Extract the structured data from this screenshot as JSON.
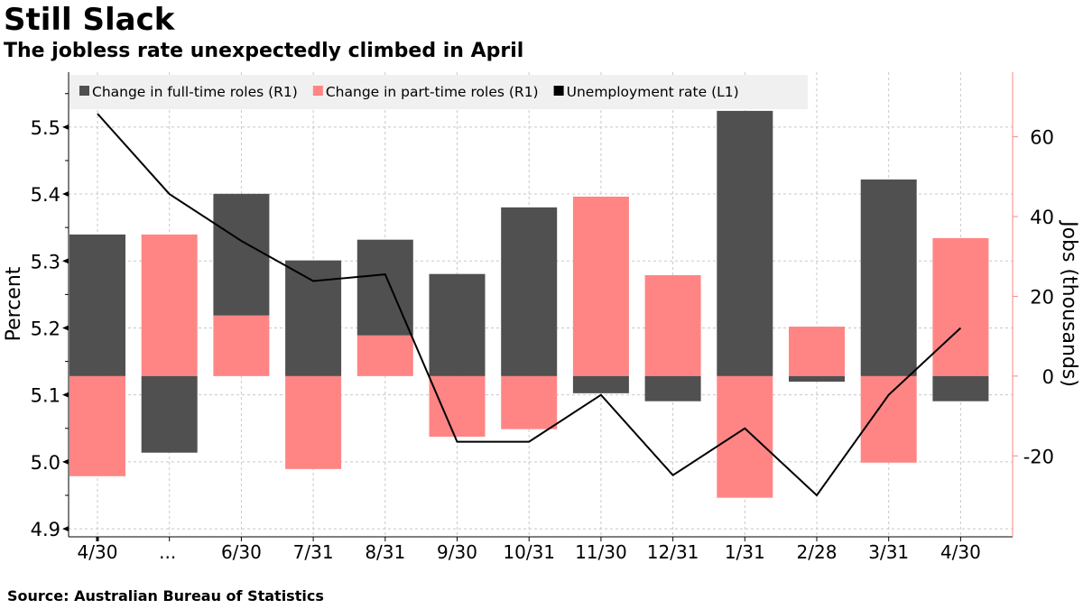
{
  "title": "Still Slack",
  "subtitle": "The jobless rate unexpectedly climbed in April",
  "source": "Source: Australian Bureau of Statistics",
  "colors": {
    "full_time": "#505050",
    "part_time": "#ff8585",
    "unemployment": "#000000",
    "right_axis": "#ff8585"
  },
  "chart_data": {
    "type": "bar+line",
    "categories": [
      "4/30",
      "...",
      "6/30",
      "7/31",
      "8/31",
      "9/30",
      "10/31",
      "11/30",
      "12/31",
      "1/31",
      "2/28",
      "3/31",
      "4/30"
    ],
    "series": [
      {
        "name": "Change in full-time roles (R1)",
        "type": "stacked-bar",
        "axis": "right",
        "values": [
          35.5,
          -19.2,
          30.5,
          29,
          24,
          25.6,
          42.3,
          -4.3,
          -6.3,
          66.5,
          -1.4,
          49.3,
          -6.3
        ]
      },
      {
        "name": "Change in part-time roles (R1)",
        "type": "stacked-bar",
        "axis": "right",
        "values": [
          -25.1,
          35.5,
          15.2,
          -23.3,
          10.2,
          -15.2,
          -13.3,
          45,
          25.3,
          -30.5,
          12.4,
          -21.7,
          34.6
        ]
      },
      {
        "name": "Unemployment rate (L1)",
        "type": "line",
        "axis": "left",
        "values": [
          5.52,
          5.4,
          5.33,
          5.27,
          5.28,
          5.03,
          5.03,
          5.1,
          4.98,
          5.05,
          4.95,
          5.1,
          5.2
        ]
      }
    ],
    "left_axis": {
      "label": "Percent",
      "ticks": [
        "4.9",
        "5.0",
        "5.1",
        "5.2",
        "5.3",
        "5.4",
        "5.5"
      ],
      "range": [
        4.888,
        5.582
      ]
    },
    "right_axis": {
      "label": "Jobs (thousands)",
      "ticks": [
        "-20",
        "0",
        "20",
        "40",
        "60"
      ],
      "range": [
        -40.3,
        76.2
      ]
    },
    "grid": true,
    "legend": "top"
  }
}
